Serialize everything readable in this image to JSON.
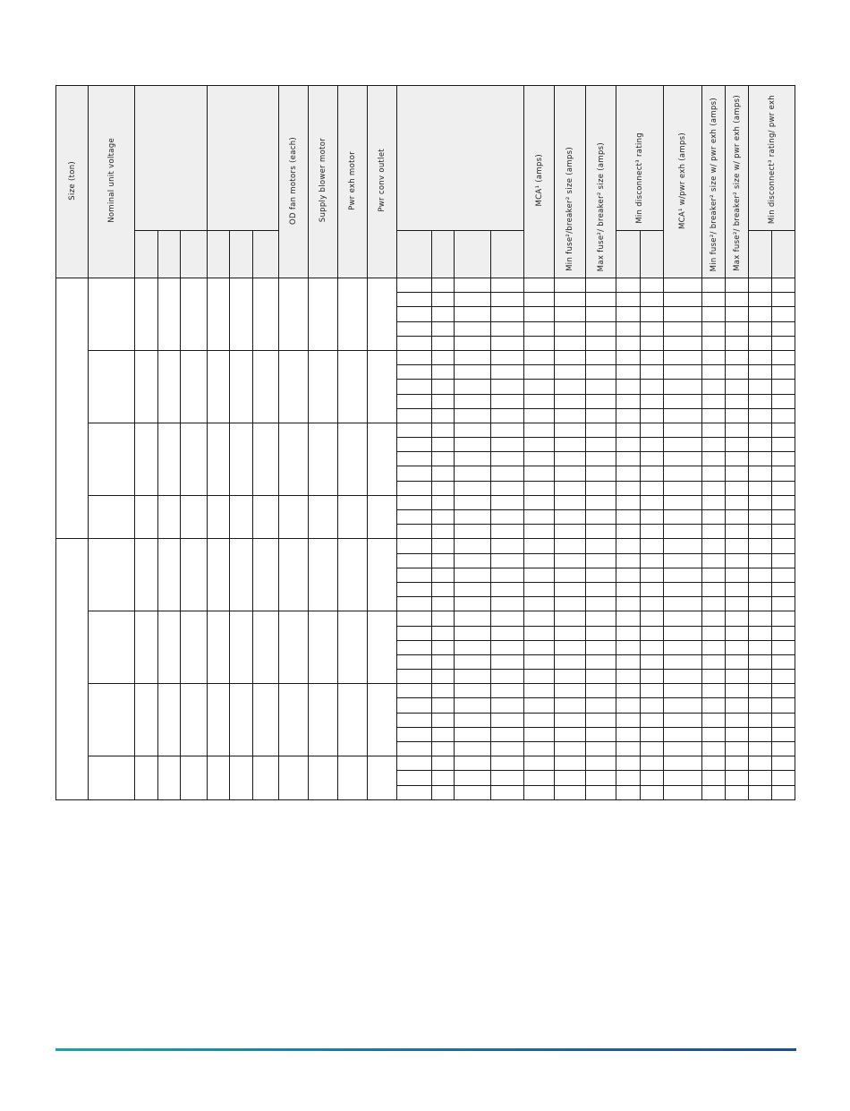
{
  "table": {
    "headers": {
      "size": "Size (ton)",
      "voltage": "Nominal unit voltage",
      "od_fan": "OD fan motors (each)",
      "supply_blower": "Supply blower motor",
      "pwr_exh_motor": "Pwr exh motor",
      "pwr_conv_outlet": "Pwr conv outlet",
      "mca": "MCA¹ (amps)",
      "min_fuse": "Min fuse²/breaker² size (amps)",
      "max_fuse": "Max fuse²/ breaker² size (amps)",
      "min_disconnect": "Min disconnect³ rating",
      "mca_pwr_exh": "MCA¹ w/pwr exh (amps)",
      "min_fuse_pwr_exh": "Min fuse²/ breaker² size w/ pwr exh (amps)",
      "max_fuse_pwr_exh": "Max fuse²/ breaker² size w/ pwr exh (amps)",
      "min_disconnect_pwr_exh": "Min disconnect³ rating/ pwr exh"
    },
    "size_groups": [
      {
        "voltage_groups": [
          5,
          5,
          5,
          3
        ]
      },
      {
        "voltage_groups": [
          5,
          5,
          5,
          3
        ]
      }
    ]
  },
  "footer": {
    "rule_colors": [
      "#1aa3a8",
      "#1c4f8f"
    ]
  }
}
